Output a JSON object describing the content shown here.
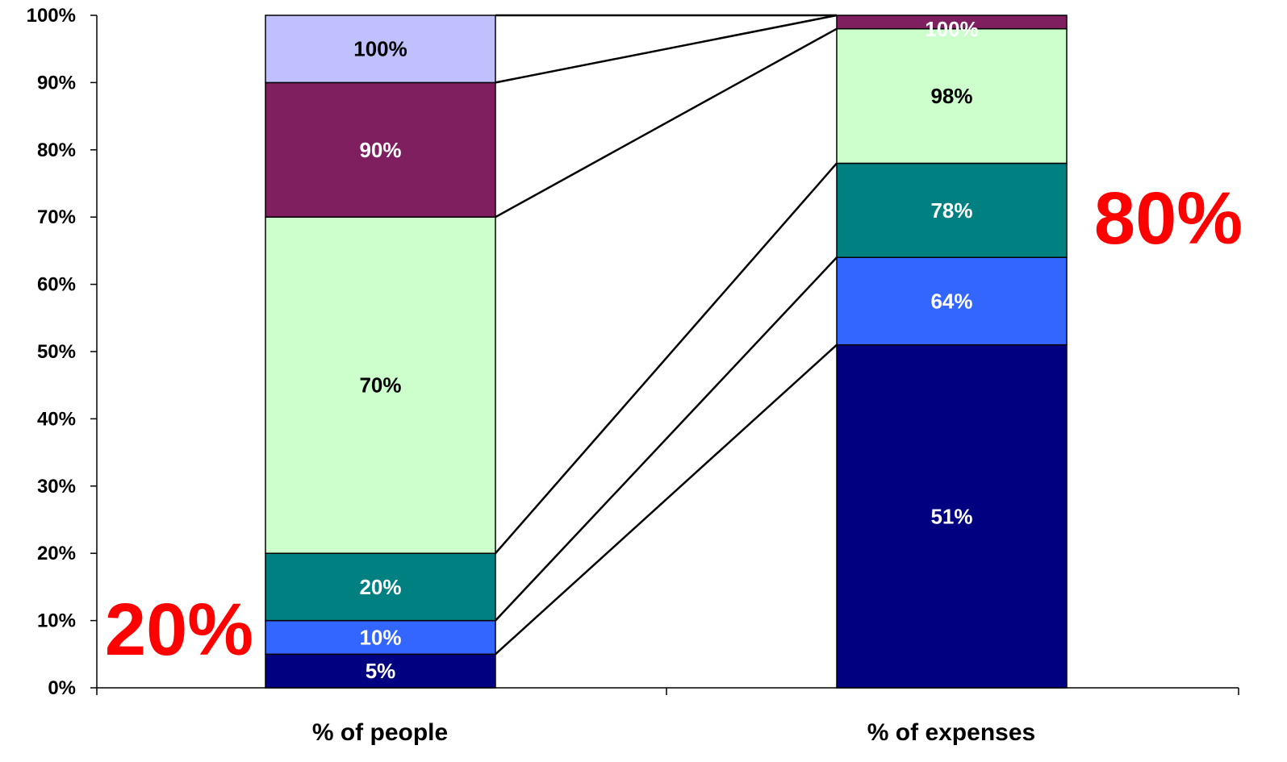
{
  "chart_data": {
    "type": "bar",
    "stacked": true,
    "categories": [
      "% of people",
      "% of expenses"
    ],
    "ylim": [
      0,
      100
    ],
    "yticks": [
      0,
      10,
      20,
      30,
      40,
      50,
      60,
      70,
      80,
      90,
      100
    ],
    "ytick_labels": [
      "0%",
      "10%",
      "20%",
      "30%",
      "40%",
      "50%",
      "60%",
      "70%",
      "80%",
      "90%",
      "100%"
    ],
    "grid": false,
    "segments": [
      {
        "category": "% of people",
        "items": [
          {
            "from": 0,
            "to": 5,
            "label": "5%",
            "color": "#000080",
            "text_color": "#ffffff"
          },
          {
            "from": 5,
            "to": 10,
            "label": "10%",
            "color": "#3366ff",
            "text_color": "#ffffff"
          },
          {
            "from": 10,
            "to": 20,
            "label": "20%",
            "color": "#008080",
            "text_color": "#ffffff"
          },
          {
            "from": 20,
            "to": 70,
            "label": "70%",
            "color": "#ccffcc",
            "text_color": "#000000"
          },
          {
            "from": 70,
            "to": 90,
            "label": "90%",
            "color": "#7f1f5f",
            "text_color": "#ffffff"
          },
          {
            "from": 90,
            "to": 100,
            "label": "100%",
            "color": "#c0c0ff",
            "text_color": "#000000"
          }
        ]
      },
      {
        "category": "% of expenses",
        "items": [
          {
            "from": 0,
            "to": 51,
            "label": "51%",
            "color": "#000080",
            "text_color": "#ffffff"
          },
          {
            "from": 51,
            "to": 64,
            "label": "64%",
            "color": "#3366ff",
            "text_color": "#ffffff"
          },
          {
            "from": 64,
            "to": 78,
            "label": "78%",
            "color": "#008080",
            "text_color": "#ffffff"
          },
          {
            "from": 78,
            "to": 98,
            "label": "98%",
            "color": "#ccffcc",
            "text_color": "#000000"
          },
          {
            "from": 98,
            "to": 100,
            "label": "100%",
            "color": "#7f1f5f",
            "text_color": "#ffffff"
          }
        ]
      }
    ],
    "connectors": [
      {
        "from": 5,
        "to": 51
      },
      {
        "from": 10,
        "to": 64
      },
      {
        "from": 20,
        "to": 78
      },
      {
        "from": 70,
        "to": 98
      },
      {
        "from": 90,
        "to": 100
      },
      {
        "from": 100,
        "to": 100
      }
    ],
    "annotations": [
      {
        "text": "20%",
        "color": "#ff0000",
        "near": "% of people",
        "placement": "bottom-left"
      },
      {
        "text": "80%",
        "color": "#ff0000",
        "near": "% of expenses",
        "placement": "right"
      }
    ]
  }
}
